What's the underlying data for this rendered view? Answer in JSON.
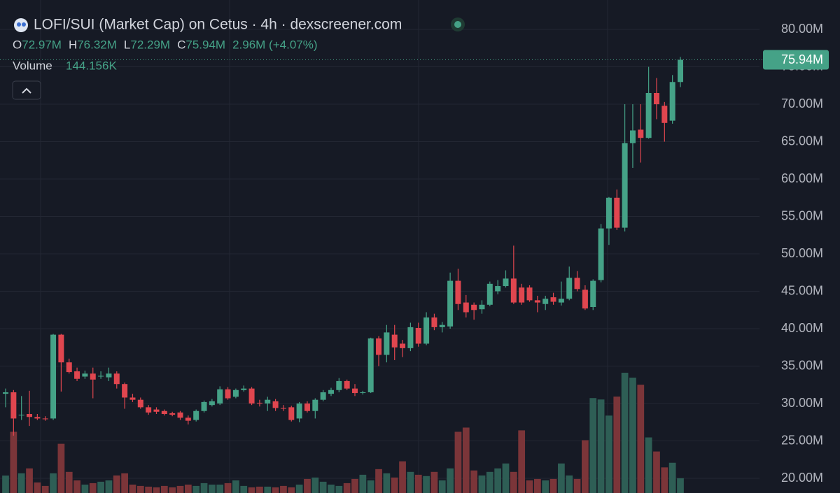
{
  "header": {
    "title": "LOFI/SUI (Market Cap) on Cetus · 4h · dexscreener.com",
    "ohlc": [
      {
        "key": "O",
        "value": "72.97M"
      },
      {
        "key": "H",
        "value": "76.32M"
      },
      {
        "key": "L",
        "value": "72.29M"
      },
      {
        "key": "C",
        "value": "75.94M"
      }
    ],
    "change": "2.96M (+4.07%)",
    "volume_label": "Volume",
    "volume_value": "144.156K"
  },
  "chart_data": {
    "type": "candlestick",
    "ylim": [
      18.04,
      83.93
    ],
    "yticks": [
      {
        "value": 20,
        "label": "20.00M"
      },
      {
        "value": 25,
        "label": "25.00M"
      },
      {
        "value": 30,
        "label": "30.00M"
      },
      {
        "value": 35,
        "label": "35.00M"
      },
      {
        "value": 40,
        "label": "40.00M"
      },
      {
        "value": 45,
        "label": "45.00M"
      },
      {
        "value": 50,
        "label": "50.00M"
      },
      {
        "value": 55,
        "label": "55.00M"
      },
      {
        "value": 60,
        "label": "60.00M"
      },
      {
        "value": 65,
        "label": "65.00M"
      },
      {
        "value": 70,
        "label": "70.00M"
      },
      {
        "value": 75,
        "label": "75.00M"
      },
      {
        "value": 80,
        "label": "80.00M"
      }
    ],
    "last_price": {
      "value": 75.94,
      "label": "75.94M"
    },
    "up_color": "#45a287",
    "down_color": "#e0464f",
    "volume_up_color": "#2e5e55",
    "volume_down_color": "#7b3539",
    "candles": [
      [
        31.3,
        32.0,
        29.5,
        31.5
      ],
      [
        31.5,
        31.8,
        25.7,
        28.0
      ],
      [
        28.4,
        31.0,
        27.8,
        28.5
      ],
      [
        28.6,
        31.7,
        27.0,
        28.2
      ],
      [
        28.2,
        28.6,
        27.8,
        28.0
      ],
      [
        28.0,
        28.3,
        27.7,
        27.9
      ],
      [
        28.0,
        39.3,
        27.8,
        39.2
      ],
      [
        39.2,
        39.3,
        31.6,
        35.5
      ],
      [
        35.5,
        36.0,
        34.0,
        34.2
      ],
      [
        34.3,
        34.8,
        33.0,
        33.3
      ],
      [
        33.6,
        34.4,
        33.3,
        34.0
      ],
      [
        34.0,
        34.8,
        30.7,
        33.2
      ],
      [
        33.6,
        34.3,
        33.3,
        33.7
      ],
      [
        33.5,
        34.8,
        33.0,
        34.0
      ],
      [
        34.0,
        34.3,
        32.0,
        32.6
      ],
      [
        32.6,
        32.8,
        29.3,
        30.8
      ],
      [
        30.8,
        31.3,
        30.2,
        30.5
      ],
      [
        30.5,
        30.8,
        29.3,
        29.5
      ],
      [
        29.5,
        29.8,
        28.5,
        28.8
      ],
      [
        29.2,
        29.5,
        28.6,
        28.9
      ],
      [
        29.0,
        29.2,
        28.4,
        28.6
      ],
      [
        28.7,
        28.9,
        28.3,
        28.5
      ],
      [
        28.8,
        29.0,
        27.8,
        28.1
      ],
      [
        28.1,
        28.4,
        27.2,
        27.7
      ],
      [
        27.8,
        29.2,
        27.6,
        29.0
      ],
      [
        29.0,
        30.4,
        28.8,
        30.2
      ],
      [
        29.8,
        30.6,
        29.6,
        30.3
      ],
      [
        30.0,
        32.3,
        29.8,
        31.9
      ],
      [
        31.9,
        32.2,
        30.5,
        30.7
      ],
      [
        30.9,
        32.0,
        30.7,
        31.8
      ],
      [
        31.8,
        32.4,
        31.6,
        32.0
      ],
      [
        32.0,
        32.2,
        29.8,
        30.0
      ],
      [
        30.1,
        30.5,
        29.6,
        30.0
      ],
      [
        30.0,
        30.9,
        29.0,
        30.5
      ],
      [
        30.3,
        30.6,
        29.0,
        29.4
      ],
      [
        29.4,
        29.8,
        29.0,
        29.3
      ],
      [
        29.5,
        29.7,
        27.6,
        27.8
      ],
      [
        28.0,
        30.2,
        27.5,
        30.0
      ],
      [
        30.0,
        30.3,
        28.8,
        29.0
      ],
      [
        29.0,
        30.7,
        28.0,
        30.5
      ],
      [
        30.5,
        31.8,
        30.3,
        31.5
      ],
      [
        31.3,
        32.1,
        31.0,
        31.8
      ],
      [
        31.8,
        33.4,
        31.5,
        33.0
      ],
      [
        33.0,
        33.2,
        31.8,
        32.0
      ],
      [
        32.0,
        32.6,
        31.0,
        31.4
      ],
      [
        31.4,
        31.7,
        31.2,
        31.5
      ],
      [
        31.5,
        38.8,
        31.4,
        38.7
      ],
      [
        38.7,
        39.0,
        35.0,
        36.5
      ],
      [
        36.5,
        40.5,
        35.5,
        39.5
      ],
      [
        39.2,
        40.5,
        35.8,
        37.5
      ],
      [
        38.0,
        38.5,
        36.2,
        37.4
      ],
      [
        37.4,
        40.8,
        37.0,
        40.2
      ],
      [
        40.1,
        40.8,
        37.6,
        38.0
      ],
      [
        38.0,
        42.2,
        37.8,
        41.5
      ],
      [
        41.5,
        42.0,
        39.8,
        40.2
      ],
      [
        40.2,
        40.9,
        39.5,
        40.5
      ],
      [
        40.3,
        47.5,
        40.0,
        46.4
      ],
      [
        46.4,
        48.0,
        42.5,
        43.3
      ],
      [
        43.5,
        44.5,
        41.5,
        42.2
      ],
      [
        43.2,
        43.5,
        41.2,
        42.5
      ],
      [
        42.6,
        43.8,
        42.0,
        43.2
      ],
      [
        43.2,
        46.3,
        43.0,
        46.0
      ],
      [
        45.0,
        46.5,
        44.6,
        45.7
      ],
      [
        45.7,
        47.8,
        45.5,
        46.7
      ],
      [
        46.7,
        51.1,
        43.3,
        43.5
      ],
      [
        45.5,
        46.0,
        43.2,
        43.5
      ],
      [
        45.5,
        45.8,
        43.6,
        43.8
      ],
      [
        43.8,
        44.4,
        42.2,
        43.5
      ],
      [
        43.3,
        44.4,
        42.5,
        44.0
      ],
      [
        44.2,
        44.8,
        43.2,
        43.6
      ],
      [
        43.5,
        46.3,
        43.1,
        44.0
      ],
      [
        44.0,
        48.3,
        43.8,
        46.8
      ],
      [
        46.8,
        47.7,
        45.0,
        45.3
      ],
      [
        45.2,
        45.8,
        42.5,
        42.7
      ],
      [
        42.9,
        46.6,
        42.5,
        46.4
      ],
      [
        46.5,
        54.0,
        46.2,
        53.4
      ],
      [
        53.4,
        57.6,
        51.2,
        57.5
      ],
      [
        57.5,
        58.6,
        53.2,
        53.5
      ],
      [
        53.5,
        70.0,
        53.0,
        64.8
      ],
      [
        64.8,
        70.0,
        61.5,
        66.5
      ],
      [
        66.6,
        70.0,
        62.2,
        65.5
      ],
      [
        65.5,
        75.0,
        65.4,
        71.5
      ],
      [
        71.5,
        73.5,
        68.0,
        70.0
      ],
      [
        69.8,
        70.3,
        65.0,
        67.5
      ],
      [
        67.8,
        73.9,
        67.4,
        72.97
      ],
      [
        72.97,
        76.32,
        72.29,
        75.94
      ]
    ],
    "volumes": [
      170000,
      597000,
      192000,
      240000,
      103000,
      69000,
      192000,
      480000,
      206000,
      123000,
      82000,
      96000,
      110000,
      123000,
      171000,
      192000,
      82000,
      69000,
      62000,
      55000,
      69000,
      55000,
      69000,
      82000,
      69000,
      96000,
      82000,
      82000,
      96000,
      123000,
      69000,
      55000,
      62000,
      62000,
      55000,
      69000,
      55000,
      82000,
      137000,
      151000,
      110000,
      82000,
      69000,
      96000,
      137000,
      178000,
      123000,
      233000,
      192000,
      151000,
      309000,
      206000,
      178000,
      165000,
      206000,
      123000,
      240000,
      597000,
      638000,
      220000,
      171000,
      206000,
      240000,
      288000,
      206000,
      611000,
      123000,
      137000,
      123000,
      137000,
      288000,
      171000,
      137000,
      515000,
      926000,
      912000,
      755000,
      940000,
      1173000,
      1125000,
      1056000,
      542000,
      405000,
      250000,
      295000,
      144156
    ]
  }
}
